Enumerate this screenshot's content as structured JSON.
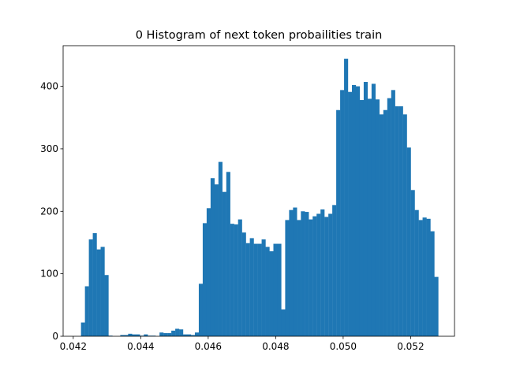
{
  "chart_data": {
    "type": "bar",
    "title": "0 Histogram of next token probailities train",
    "xlabel": "",
    "ylabel": "",
    "xlim": [
      0.0417,
      0.0533
    ],
    "ylim": [
      0,
      465
    ],
    "grid": false,
    "bar_color": "#1f77b4",
    "xticks": [
      {
        "value": 0.042,
        "label": "0.042"
      },
      {
        "value": 0.044,
        "label": "0.044"
      },
      {
        "value": 0.046,
        "label": "0.046"
      },
      {
        "value": 0.048,
        "label": "0.048"
      },
      {
        "value": 0.05,
        "label": "0.050"
      },
      {
        "value": 0.052,
        "label": "0.052"
      }
    ],
    "yticks": [
      {
        "value": 0,
        "label": "0"
      },
      {
        "value": 100,
        "label": "100"
      },
      {
        "value": 200,
        "label": "200"
      },
      {
        "value": 300,
        "label": "300"
      },
      {
        "value": 400,
        "label": "400"
      }
    ],
    "bin_start": 0.04223,
    "bin_end": 0.05282,
    "counts": [
      22,
      80,
      155,
      165,
      139,
      143,
      98,
      1,
      0,
      0,
      2,
      2,
      4,
      3,
      3,
      1,
      3,
      1,
      1,
      0,
      6,
      5,
      5,
      9,
      12,
      11,
      3,
      3,
      2,
      6,
      84,
      181,
      205,
      253,
      243,
      279,
      231,
      263,
      180,
      179,
      187,
      166,
      149,
      157,
      148,
      148,
      155,
      143,
      136,
      148,
      148,
      43,
      186,
      202,
      206,
      186,
      200,
      199,
      187,
      192,
      196,
      203,
      191,
      196,
      210,
      362,
      394,
      444,
      391,
      402,
      400,
      378,
      407,
      380,
      404,
      379,
      355,
      362,
      381,
      394,
      368,
      368,
      355,
      302,
      234,
      202,
      186,
      190,
      188,
      168,
      95
    ]
  }
}
